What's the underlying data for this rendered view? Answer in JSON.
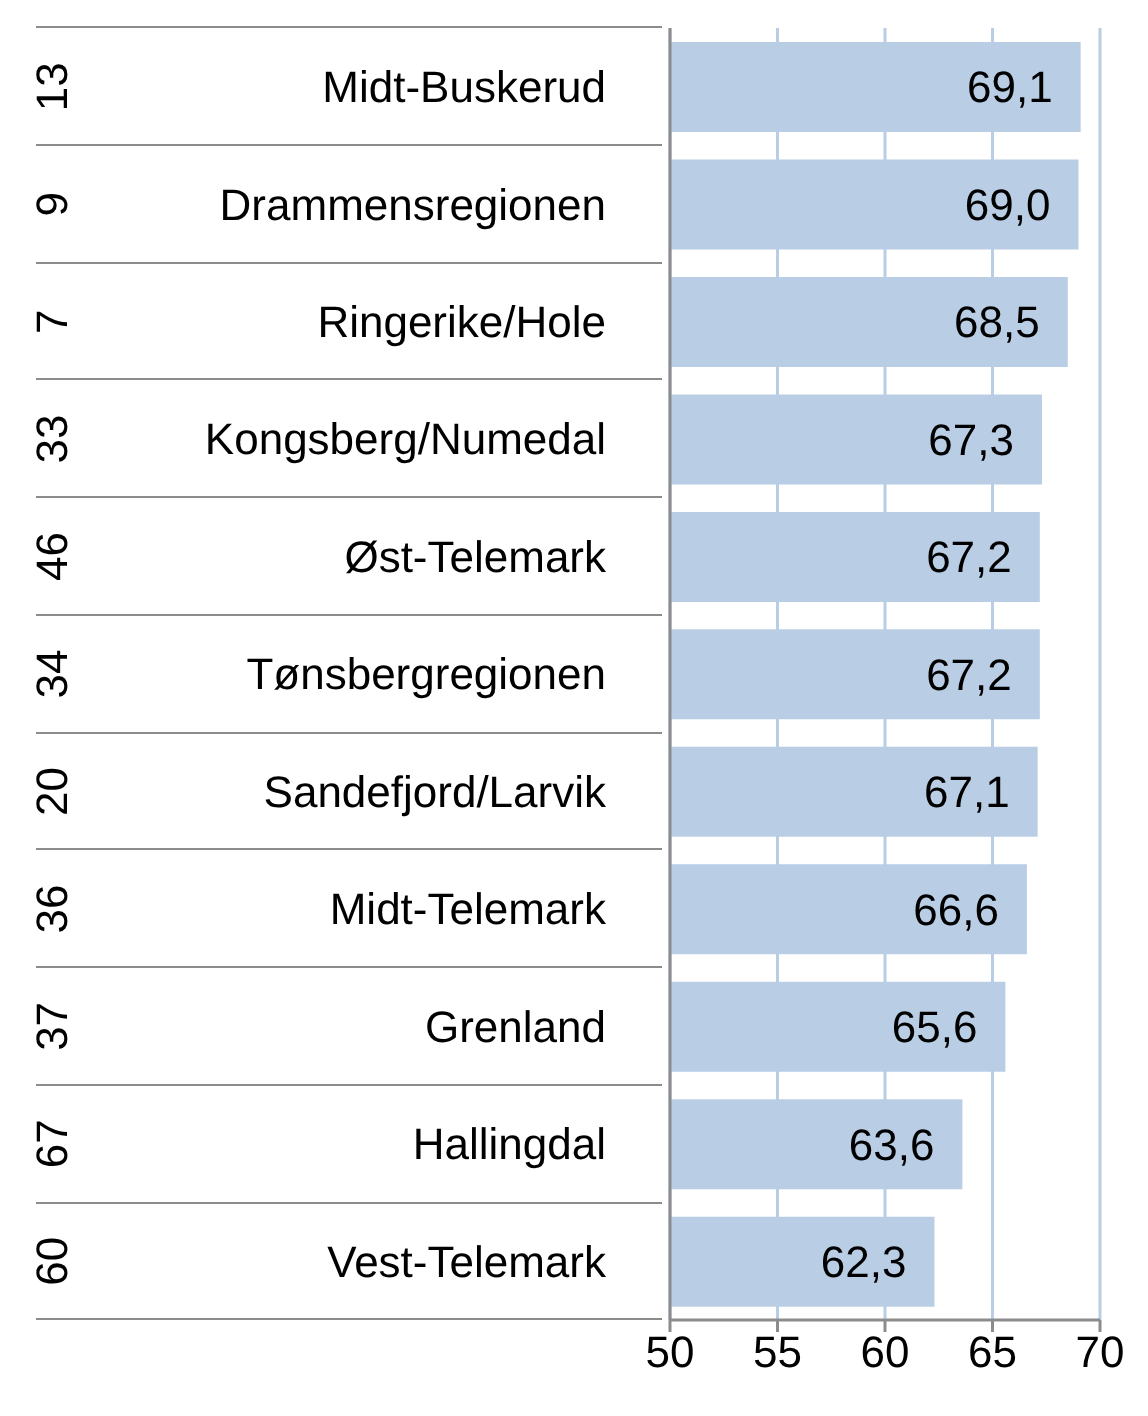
{
  "chart_data": {
    "type": "bar",
    "orientation": "horizontal",
    "categories": [
      "Midt-Buskerud",
      "Drammensregionen",
      "Ringerike/Hole",
      "Kongsberg/Numedal",
      "Øst-Telemark",
      "Tønsbergregionen",
      "Sandefjord/Larvik",
      "Midt-Telemark",
      "Grenland",
      "Hallingdal",
      "Vest-Telemark"
    ],
    "values": [
      69.1,
      69.0,
      68.5,
      67.3,
      67.2,
      67.2,
      67.1,
      66.6,
      65.6,
      63.6,
      62.3
    ],
    "value_labels": [
      "69,1",
      "69,0",
      "68,5",
      "67,3",
      "67,2",
      "67,2",
      "67,1",
      "66,6",
      "65,6",
      "63,6",
      "62,3"
    ],
    "color": "#b9cde5",
    "xlim": [
      50,
      70
    ],
    "xticks": [
      50,
      55,
      60,
      65,
      70
    ],
    "grid": "x",
    "annotations": [
      "13",
      "9",
      "7",
      "33",
      "46",
      "34",
      "20",
      "36",
      "37",
      "67",
      "60"
    ]
  }
}
